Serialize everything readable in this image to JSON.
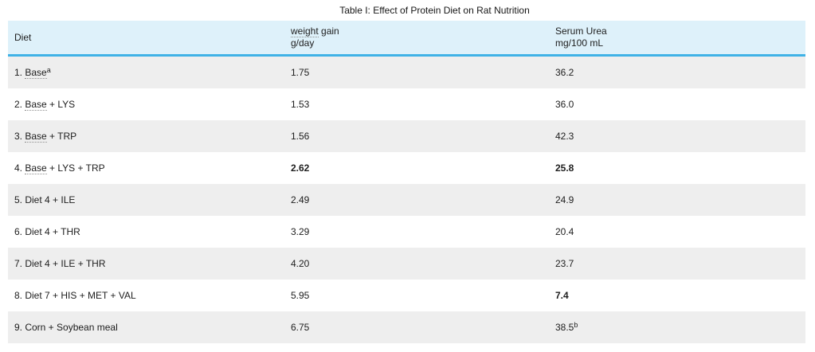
{
  "title": "Table I: Effect of Protein Diet on Rat Nutrition",
  "colors": {
    "header_bg": "#def1fa",
    "accent_line": "#3fb2e6",
    "row_alt_bg": "#eeeeee"
  },
  "header": {
    "diet": "Diet",
    "weight_underlined": "weight",
    "weight_rest": " gain",
    "weight_line2": "g/day",
    "serum_line1": "Serum Urea",
    "serum_line2": "mg/100 mL"
  },
  "rows": [
    {
      "diet_prefix": "1. ",
      "diet_underlined": "Base",
      "diet_sup": "a",
      "weight": "1.75",
      "serum": "36.2"
    },
    {
      "diet_prefix": "2. ",
      "diet_underlined": "Base",
      "diet_rest": " + LYS",
      "weight": "1.53",
      "serum": "36.0"
    },
    {
      "diet_prefix": "3. ",
      "diet_underlined": "Base",
      "diet_rest": " + TRP",
      "weight": "1.56",
      "serum": "42.3"
    },
    {
      "diet_prefix": "4. ",
      "diet_underlined": "Base",
      "diet_rest": " + LYS + TRP",
      "weight": "2.62",
      "serum": "25.8"
    },
    {
      "diet_text": "5. Diet 4 + ILE",
      "weight": "2.49",
      "serum": "24.9"
    },
    {
      "diet_text": "6. Diet 4 + THR",
      "weight": "3.29",
      "serum": "20.4"
    },
    {
      "diet_text": "7. Diet 4 + ILE + THR",
      "weight": "4.20",
      "serum": "23.7"
    },
    {
      "diet_text": "8. Diet 7 + HIS + MET + VAL",
      "weight": "5.95",
      "serum": "7.4"
    },
    {
      "diet_text": "9. Corn + Soybean meal",
      "weight": "6.75",
      "serum": "38.5",
      "serum_sup": "b"
    }
  ]
}
